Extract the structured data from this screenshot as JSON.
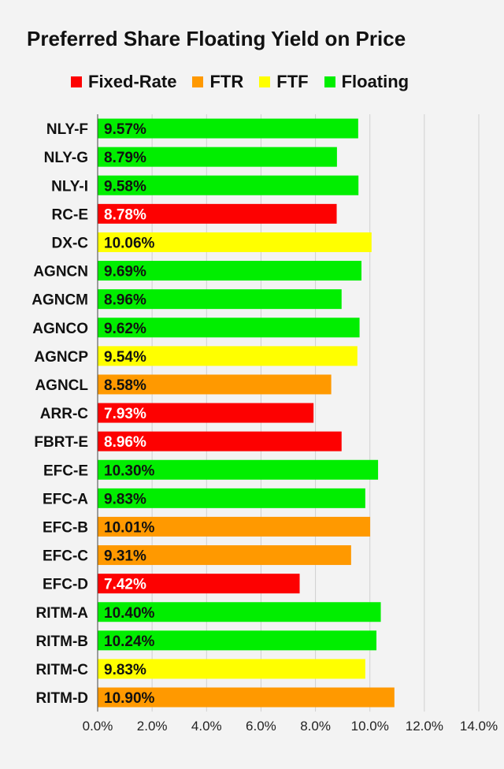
{
  "colors": {
    "Fixed-Rate": "#fd0101",
    "FTR": "#ff9900",
    "FTF": "#ffff00",
    "Floating": "#01ee00"
  },
  "chart_data": {
    "type": "bar",
    "orientation": "horizontal",
    "title": "Preferred Share Floating Yield on Price",
    "legend": [
      "Fixed-Rate",
      "FTR",
      "FTF",
      "Floating"
    ],
    "legend_position": "top",
    "xlim": [
      0,
      14
    ],
    "x_ticks": [
      "0.0%",
      "2.0%",
      "4.0%",
      "6.0%",
      "8.0%",
      "10.0%",
      "12.0%",
      "14.0%"
    ],
    "grid": true,
    "categories": [
      "NLY-F",
      "NLY-G",
      "NLY-I",
      "RC-E",
      "DX-C",
      "AGNCN",
      "AGNCM",
      "AGNCO",
      "AGNCP",
      "AGNCL",
      "ARR-C",
      "FBRT-E",
      "EFC-E",
      "EFC-A",
      "EFC-B",
      "EFC-C",
      "EFC-D",
      "RITM-A",
      "RITM-B",
      "RITM-C",
      "RITM-D"
    ],
    "values": [
      9.57,
      8.79,
      9.58,
      8.78,
      10.06,
      9.69,
      8.96,
      9.62,
      9.54,
      8.58,
      7.93,
      8.96,
      10.3,
      9.83,
      10.01,
      9.31,
      7.42,
      10.4,
      10.24,
      9.83,
      10.9
    ],
    "labels": [
      "9.57%",
      "8.79%",
      "9.58%",
      "8.78%",
      "10.06%",
      "9.69%",
      "8.96%",
      "9.62%",
      "9.54%",
      "8.58%",
      "7.93%",
      "8.96%",
      "10.30%",
      "9.83%",
      "10.01%",
      "9.31%",
      "7.42%",
      "10.40%",
      "10.24%",
      "9.83%",
      "10.90%"
    ],
    "types": [
      "Floating",
      "Floating",
      "Floating",
      "Fixed-Rate",
      "FTF",
      "Floating",
      "Floating",
      "Floating",
      "FTF",
      "FTR",
      "Fixed-Rate",
      "Fixed-Rate",
      "Floating",
      "Floating",
      "FTR",
      "FTR",
      "Fixed-Rate",
      "Floating",
      "Floating",
      "FTF",
      "FTR"
    ]
  }
}
